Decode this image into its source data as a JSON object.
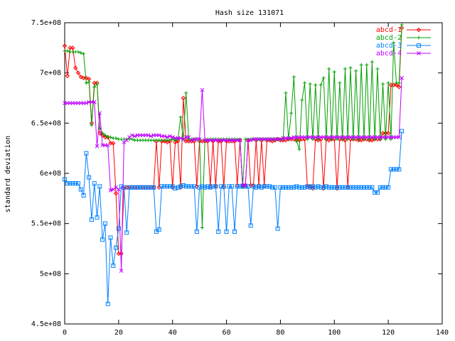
{
  "chart_data": {
    "type": "line",
    "title": "Hash size 131071",
    "xlabel": "",
    "ylabel": "standard deviation",
    "xlim": [
      0,
      140
    ],
    "ylim": [
      450000000,
      750000000
    ],
    "xticks": [
      0,
      20,
      40,
      60,
      80,
      100,
      120,
      140
    ],
    "xtick_labels": [
      "0",
      "20",
      "40",
      "60",
      "80",
      "100",
      "120",
      "140"
    ],
    "yticks": [
      450000000,
      500000000,
      550000000,
      600000000,
      650000000,
      700000000,
      750000000
    ],
    "ytick_labels": [
      "4.5e+08",
      "5e+08",
      "5.5e+08",
      "6e+08",
      "6.5e+08",
      "7e+08",
      "7.5e+08"
    ],
    "grid": false,
    "legend_position": "top-right",
    "series": [
      {
        "name": "abcd-1",
        "color": "#ff0000",
        "marker": "diamond",
        "x": [
          0,
          1,
          2,
          3,
          4,
          5,
          6,
          7,
          8,
          9,
          10,
          11,
          12,
          13,
          14,
          15,
          16,
          17,
          18,
          19,
          20,
          21,
          22,
          23,
          24,
          25,
          26,
          27,
          28,
          29,
          30,
          31,
          32,
          33,
          34,
          35,
          36,
          37,
          38,
          39,
          40,
          41,
          42,
          43,
          44,
          45,
          46,
          47,
          48,
          49,
          50,
          51,
          52,
          53,
          54,
          55,
          56,
          57,
          58,
          59,
          60,
          61,
          62,
          63,
          64,
          65,
          66,
          67,
          68,
          69,
          70,
          71,
          72,
          73,
          74,
          75,
          76,
          77,
          78,
          79,
          80,
          81,
          82,
          83,
          84,
          85,
          86,
          87,
          88,
          89,
          90,
          91,
          92,
          93,
          94,
          95,
          96,
          97,
          98,
          99,
          100,
          101,
          102,
          103,
          104,
          105,
          106,
          107,
          108,
          109,
          110,
          111,
          112,
          113,
          114,
          115,
          116,
          117,
          118,
          119,
          120,
          121,
          122,
          123,
          124,
          125
        ],
        "y": [
          727000000,
          697000000,
          725000000,
          725000000,
          705000000,
          700000000,
          696000000,
          695000000,
          695000000,
          694000000,
          650000000,
          690000000,
          690000000,
          640000000,
          638000000,
          636000000,
          636000000,
          630000000,
          630000000,
          580000000,
          520000000,
          520000000,
          585000000,
          586000000,
          586000000,
          586000000,
          586000000,
          586000000,
          586000000,
          586000000,
          586000000,
          586000000,
          586000000,
          586000000,
          632000000,
          586000000,
          632000000,
          632000000,
          631000000,
          632000000,
          586000000,
          631000000,
          632000000,
          586000000,
          675000000,
          632000000,
          632000000,
          632000000,
          632000000,
          587000000,
          632000000,
          632000000,
          632000000,
          632000000,
          587000000,
          632000000,
          587000000,
          632000000,
          632000000,
          586000000,
          632000000,
          632000000,
          632000000,
          632000000,
          588000000,
          633000000,
          588000000,
          588000000,
          633000000,
          588000000,
          588000000,
          633000000,
          588000000,
          633000000,
          588000000,
          633000000,
          633000000,
          632000000,
          633000000,
          634000000,
          633000000,
          633000000,
          633000000,
          634000000,
          634000000,
          634000000,
          633000000,
          633000000,
          634000000,
          634000000,
          587000000,
          587000000,
          585000000,
          634000000,
          633000000,
          634000000,
          585000000,
          634000000,
          633000000,
          634000000,
          634000000,
          585000000,
          634000000,
          634000000,
          633000000,
          586000000,
          634000000,
          634000000,
          634000000,
          633000000,
          633000000,
          634000000,
          634000000,
          633000000,
          633000000,
          634000000,
          634000000,
          634000000,
          640000000,
          640000000,
          640000000,
          688000000,
          688000000,
          688000000,
          686000000,
          745000000
        ]
      },
      {
        "name": "abcd-2",
        "color": "#00a000",
        "marker": "plus",
        "x": [
          0,
          1,
          2,
          3,
          4,
          5,
          6,
          7,
          8,
          9,
          10,
          11,
          12,
          13,
          14,
          15,
          16,
          17,
          18,
          19,
          20,
          21,
          22,
          23,
          24,
          25,
          26,
          27,
          28,
          29,
          30,
          31,
          32,
          33,
          34,
          35,
          36,
          37,
          38,
          39,
          40,
          41,
          42,
          43,
          44,
          45,
          46,
          47,
          48,
          49,
          50,
          51,
          52,
          53,
          54,
          55,
          56,
          57,
          58,
          59,
          60,
          61,
          62,
          63,
          64,
          65,
          66,
          67,
          68,
          69,
          70,
          71,
          72,
          73,
          74,
          75,
          76,
          77,
          78,
          79,
          80,
          81,
          82,
          83,
          84,
          85,
          86,
          87,
          88,
          89,
          90,
          91,
          92,
          93,
          94,
          95,
          96,
          97,
          98,
          99,
          100,
          101,
          102,
          103,
          104,
          105,
          106,
          107,
          108,
          109,
          110,
          111,
          112,
          113,
          114,
          115,
          116,
          117,
          118,
          119,
          120,
          121,
          122,
          123,
          124,
          125
        ],
        "y": [
          722000000,
          722000000,
          721000000,
          721000000,
          721000000,
          721000000,
          720000000,
          719000000,
          690000000,
          691000000,
          648000000,
          686000000,
          689000000,
          645000000,
          640000000,
          638000000,
          636000000,
          636000000,
          635000000,
          635000000,
          634000000,
          634000000,
          634000000,
          634000000,
          634000000,
          634000000,
          633000000,
          633000000,
          633000000,
          633000000,
          633000000,
          633000000,
          633000000,
          633000000,
          633000000,
          633000000,
          633000000,
          633000000,
          633000000,
          633000000,
          634000000,
          633000000,
          634000000,
          656000000,
          634000000,
          680000000,
          634000000,
          634000000,
          634000000,
          634000000,
          634000000,
          546000000,
          634000000,
          634000000,
          634000000,
          634000000,
          634000000,
          634000000,
          634000000,
          634000000,
          634000000,
          634000000,
          634000000,
          634000000,
          634000000,
          634000000,
          586000000,
          634000000,
          634000000,
          634000000,
          634000000,
          634000000,
          634000000,
          634000000,
          634000000,
          634000000,
          634000000,
          634000000,
          634000000,
          634000000,
          634000000,
          634000000,
          680000000,
          634000000,
          660000000,
          696000000,
          632000000,
          624000000,
          673000000,
          690000000,
          634000000,
          689000000,
          634000000,
          688000000,
          634000000,
          688000000,
          695000000,
          634000000,
          704000000,
          634000000,
          701000000,
          634000000,
          690000000,
          634000000,
          704000000,
          634000000,
          705000000,
          634000000,
          702000000,
          634000000,
          708000000,
          634000000,
          708000000,
          634000000,
          711000000,
          634000000,
          704000000,
          634000000,
          689000000,
          634000000,
          690000000,
          634000000,
          730000000,
          690000000,
          690000000,
          748000000
        ]
      },
      {
        "name": "abcd-3",
        "color": "#0080ff",
        "marker": "square",
        "x": [
          0,
          1,
          2,
          3,
          4,
          5,
          6,
          7,
          8,
          9,
          10,
          11,
          12,
          13,
          14,
          15,
          16,
          17,
          18,
          19,
          20,
          21,
          22,
          23,
          24,
          25,
          26,
          27,
          28,
          29,
          30,
          31,
          32,
          33,
          34,
          35,
          36,
          37,
          38,
          39,
          40,
          41,
          42,
          43,
          44,
          45,
          46,
          47,
          48,
          49,
          50,
          51,
          52,
          53,
          54,
          55,
          56,
          57,
          58,
          59,
          60,
          61,
          62,
          63,
          64,
          65,
          66,
          67,
          68,
          69,
          70,
          71,
          72,
          73,
          74,
          75,
          76,
          77,
          78,
          79,
          80,
          81,
          82,
          83,
          84,
          85,
          86,
          87,
          88,
          89,
          90,
          91,
          92,
          93,
          94,
          95,
          96,
          97,
          98,
          99,
          100,
          101,
          102,
          103,
          104,
          105,
          106,
          107,
          108,
          109,
          110,
          111,
          112,
          113,
          114,
          115,
          116,
          117,
          118,
          119,
          120,
          121,
          122,
          123,
          124,
          125
        ],
        "y": [
          594000000,
          590000000,
          590000000,
          590000000,
          590000000,
          590000000,
          584000000,
          578000000,
          620000000,
          596000000,
          554000000,
          590000000,
          556000000,
          587000000,
          534000000,
          550000000,
          470000000,
          536000000,
          508000000,
          526000000,
          545000000,
          587000000,
          586000000,
          541000000,
          586000000,
          586000000,
          586000000,
          586000000,
          586000000,
          586000000,
          586000000,
          586000000,
          586000000,
          586000000,
          542000000,
          544000000,
          587000000,
          587000000,
          587000000,
          587000000,
          587000000,
          585000000,
          586000000,
          587000000,
          588000000,
          587000000,
          587000000,
          587000000,
          587000000,
          542000000,
          586000000,
          587000000,
          586000000,
          587000000,
          586000000,
          587000000,
          587000000,
          542000000,
          587000000,
          587000000,
          542000000,
          587000000,
          587000000,
          542000000,
          587000000,
          587000000,
          587000000,
          587000000,
          587000000,
          548000000,
          587000000,
          586000000,
          587000000,
          586000000,
          587000000,
          587000000,
          587000000,
          586000000,
          586000000,
          545000000,
          586000000,
          586000000,
          586000000,
          586000000,
          586000000,
          586000000,
          587000000,
          586000000,
          586000000,
          586000000,
          587000000,
          586000000,
          587000000,
          586000000,
          587000000,
          586000000,
          586000000,
          587000000,
          586000000,
          586000000,
          586000000,
          586000000,
          586000000,
          586000000,
          586000000,
          586000000,
          586000000,
          586000000,
          586000000,
          586000000,
          586000000,
          586000000,
          586000000,
          586000000,
          586000000,
          581000000,
          581000000,
          586000000,
          586000000,
          586000000,
          586000000,
          604000000,
          604000000,
          604000000,
          604000000,
          642000000
        ]
      },
      {
        "name": "abcd-4",
        "color": "#c000ff",
        "marker": "x",
        "x": [
          0,
          1,
          2,
          3,
          4,
          5,
          6,
          7,
          8,
          9,
          10,
          11,
          12,
          13,
          14,
          15,
          16,
          17,
          18,
          19,
          20,
          21,
          22,
          23,
          24,
          25,
          26,
          27,
          28,
          29,
          30,
          31,
          32,
          33,
          34,
          35,
          36,
          37,
          38,
          39,
          40,
          41,
          42,
          43,
          44,
          45,
          46,
          47,
          48,
          49,
          50,
          51,
          52,
          53,
          54,
          55,
          56,
          57,
          58,
          59,
          60,
          61,
          62,
          63,
          64,
          65,
          66,
          67,
          68,
          69,
          70,
          71,
          72,
          73,
          74,
          75,
          76,
          77,
          78,
          79,
          80,
          81,
          82,
          83,
          84,
          85,
          86,
          87,
          88,
          89,
          90,
          91,
          92,
          93,
          94,
          95,
          96,
          97,
          98,
          99,
          100,
          101,
          102,
          103,
          104,
          105,
          106,
          107,
          108,
          109,
          110,
          111,
          112,
          113,
          114,
          115,
          116,
          117,
          118,
          119,
          120,
          121,
          122,
          123,
          124,
          125
        ],
        "y": [
          670000000,
          670000000,
          670000000,
          670000000,
          670000000,
          670000000,
          670000000,
          670000000,
          670000000,
          671000000,
          671000000,
          671000000,
          627000000,
          660000000,
          628000000,
          628000000,
          628000000,
          583000000,
          584000000,
          586000000,
          584000000,
          503000000,
          631000000,
          633000000,
          636000000,
          638000000,
          637000000,
          638000000,
          638000000,
          638000000,
          638000000,
          638000000,
          637000000,
          638000000,
          638000000,
          638000000,
          637000000,
          637000000,
          636000000,
          637000000,
          636000000,
          635000000,
          635000000,
          635000000,
          634000000,
          636000000,
          636000000,
          633000000,
          634000000,
          634000000,
          634000000,
          683000000,
          633000000,
          633000000,
          633000000,
          633000000,
          633000000,
          633000000,
          633000000,
          633000000,
          633000000,
          633000000,
          633000000,
          633000000,
          633000000,
          633000000,
          588000000,
          588000000,
          633000000,
          633000000,
          634000000,
          634000000,
          634000000,
          634000000,
          634000000,
          634000000,
          634000000,
          634000000,
          634000000,
          634000000,
          634000000,
          635000000,
          635000000,
          635000000,
          635000000,
          636000000,
          636000000,
          636000000,
          636000000,
          636000000,
          636000000,
          636000000,
          636000000,
          636000000,
          636000000,
          636000000,
          636000000,
          636000000,
          636000000,
          636000000,
          636000000,
          636000000,
          636000000,
          636000000,
          636000000,
          636000000,
          636000000,
          636000000,
          636000000,
          636000000,
          636000000,
          636000000,
          636000000,
          636000000,
          636000000,
          636000000,
          636000000,
          636000000,
          636000000,
          636000000,
          636000000,
          636000000,
          636000000,
          636000000,
          636000000,
          695000000
        ]
      }
    ]
  }
}
